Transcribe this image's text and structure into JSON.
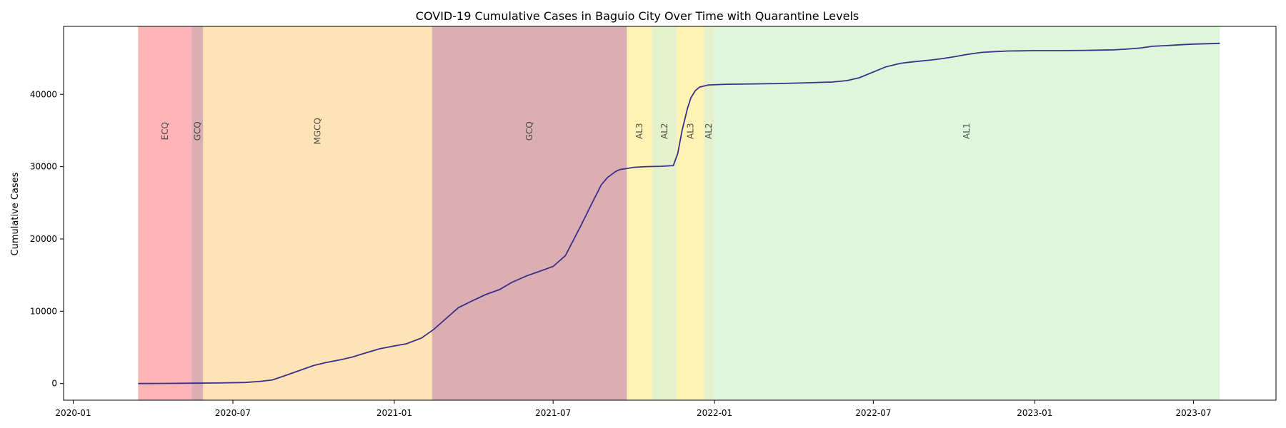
{
  "chart_data": {
    "type": "area",
    "title": "COVID-19 Cumulative Cases in Baguio City Over Time with Quarantine Levels",
    "xlabel": "",
    "ylabel": "Cumulative Cases",
    "x_scale": "date",
    "xlim": [
      "2019-12-21",
      "2023-10-03"
    ],
    "ylim": [
      -2300,
      49400
    ],
    "x_ticks": [
      "2020-01",
      "2020-07",
      "2021-01",
      "2021-07",
      "2022-01",
      "2022-07",
      "2023-01",
      "2023-07"
    ],
    "y_ticks": [
      0,
      10000,
      20000,
      30000,
      40000
    ],
    "grid": false,
    "legend": "none",
    "line_color": "#3b2f87",
    "quarantine_levels": [
      {
        "label": "ECQ",
        "start": "2020-03-15",
        "end": "2020-05-15",
        "color": "#ff6b6f"
      },
      {
        "label": "GCQ",
        "start": "2020-05-15",
        "end": "2020-05-28",
        "color": "#b85e69"
      },
      {
        "label": "MGCQ",
        "start": "2020-05-28",
        "end": "2021-02-13",
        "color": "#fbc86b"
      },
      {
        "label": "GCQ",
        "start": "2021-02-13",
        "end": "2021-09-23",
        "color": "#b85e69"
      },
      {
        "label": "AL3",
        "start": "2021-09-23",
        "end": "2021-10-22",
        "color": "#fee86b"
      },
      {
        "label": "AL2",
        "start": "2021-10-22",
        "end": "2021-11-19",
        "color": "#c9e49a"
      },
      {
        "label": "AL3",
        "start": "2021-11-19",
        "end": "2021-12-20",
        "color": "#fee86b"
      },
      {
        "label": "AL2",
        "start": "2021-12-20",
        "end": "2021-12-31",
        "color": "#c9e49a"
      },
      {
        "label": "AL1",
        "start": "2021-12-31",
        "end": "2023-07-31",
        "color": "#bef0b9"
      }
    ],
    "series": [
      {
        "x": [
          "2020-03-15",
          "2020-04-15",
          "2020-05-15",
          "2020-06-15",
          "2020-07-15",
          "2020-08-01",
          "2020-08-15",
          "2020-09-01",
          "2020-09-15",
          "2020-10-01",
          "2020-10-15",
          "2020-11-01",
          "2020-11-15",
          "2020-12-01",
          "2020-12-15",
          "2021-01-01",
          "2021-01-15",
          "2021-02-01",
          "2021-02-15",
          "2021-03-01",
          "2021-03-15",
          "2021-04-01",
          "2021-04-15",
          "2021-05-01",
          "2021-05-15",
          "2021-06-01",
          "2021-06-15",
          "2021-07-01",
          "2021-07-15",
          "2021-08-01",
          "2021-08-15",
          "2021-08-25",
          "2021-09-01",
          "2021-09-10",
          "2021-09-15",
          "2021-10-01",
          "2021-10-15",
          "2021-11-01",
          "2021-11-15",
          "2021-11-20",
          "2021-11-25",
          "2021-12-01",
          "2021-12-05",
          "2021-12-10",
          "2021-12-15",
          "2021-12-25",
          "2022-01-15",
          "2022-02-15",
          "2022-03-15",
          "2022-04-15",
          "2022-05-15",
          "2022-06-01",
          "2022-06-15",
          "2022-07-01",
          "2022-07-15",
          "2022-08-01",
          "2022-08-15",
          "2022-09-01",
          "2022-09-15",
          "2022-10-01",
          "2022-10-15",
          "2022-11-01",
          "2022-11-15",
          "2022-12-01",
          "2022-12-15",
          "2023-01-01",
          "2023-02-01",
          "2023-03-01",
          "2023-04-01",
          "2023-04-15",
          "2023-05-01",
          "2023-05-15",
          "2023-06-01",
          "2023-06-15",
          "2023-07-01",
          "2023-07-31"
        ],
        "y": [
          0,
          20,
          50,
          80,
          150,
          300,
          500,
          1200,
          1800,
          2500,
          2900,
          3300,
          3700,
          4300,
          4800,
          5200,
          5500,
          6300,
          7500,
          9000,
          10500,
          11500,
          12300,
          13000,
          14000,
          14900,
          15500,
          16200,
          17700,
          21700,
          25100,
          27500,
          28500,
          29300,
          29600,
          29900,
          30000,
          30050,
          30150,
          31800,
          35000,
          38000,
          39500,
          40500,
          41000,
          41300,
          41400,
          41450,
          41500,
          41600,
          41700,
          41900,
          42300,
          43100,
          43800,
          44300,
          44500,
          44700,
          44900,
          45200,
          45500,
          45800,
          45900,
          46000,
          46020,
          46050,
          46050,
          46080,
          46150,
          46250,
          46400,
          46650,
          46750,
          46850,
          46950,
          47050
        ]
      }
    ]
  }
}
